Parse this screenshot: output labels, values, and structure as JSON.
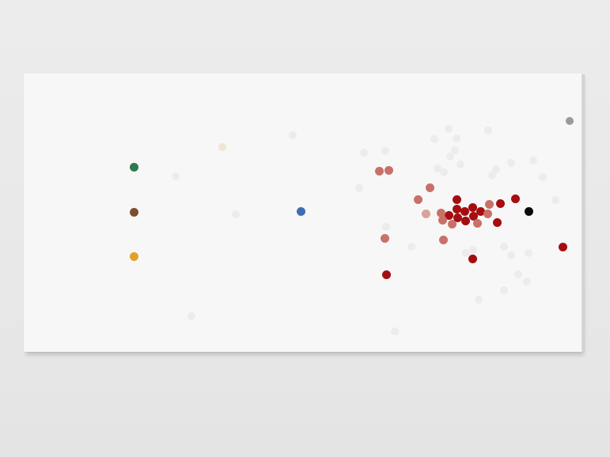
{
  "artwork": {
    "colors": {
      "wall": "#e9e9e9",
      "panel": "#f7f7f7",
      "faint": "#ececec",
      "crimson": "#a50d10",
      "salmon": "#c87168",
      "pale_salmon": "#dda09a",
      "green": "#2f7a52",
      "brown": "#7a4e2e",
      "ochre": "#e2a223",
      "blue": "#3a6eb5",
      "cream": "#efe5d2",
      "gray": "#9a9a9a",
      "black": "#0a0a0a"
    }
  }
}
